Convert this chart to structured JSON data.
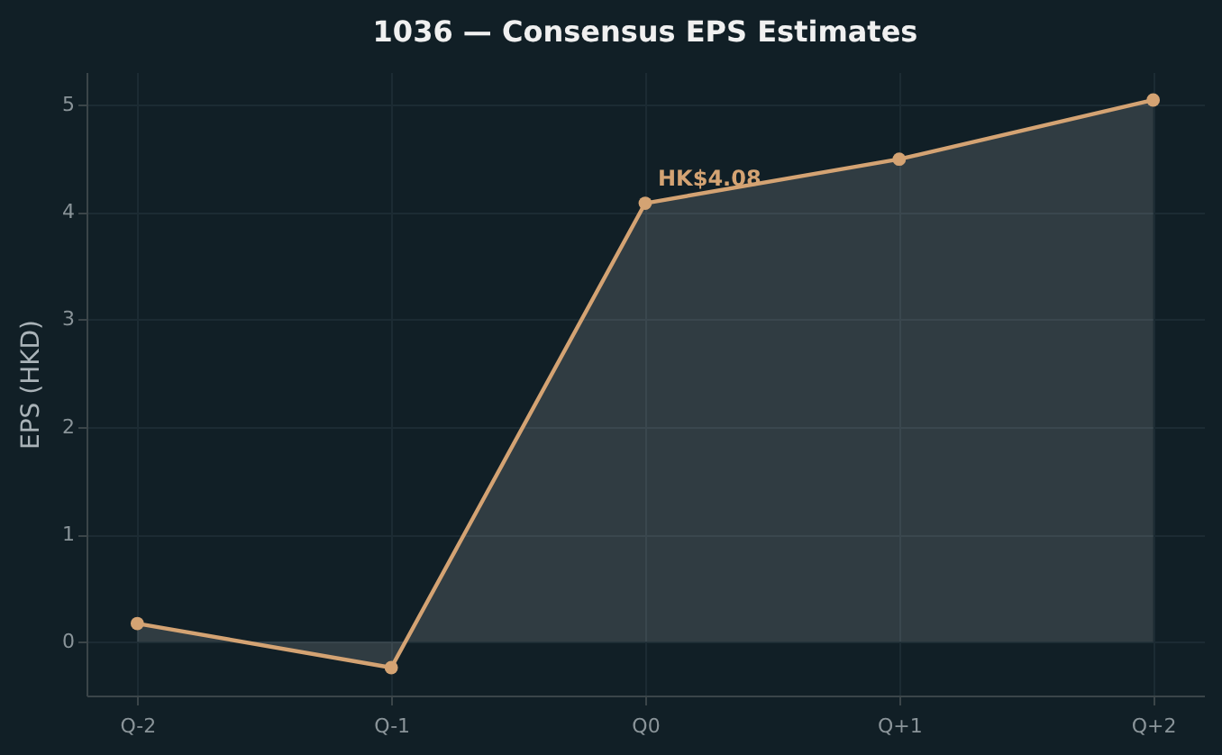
{
  "chart_data": {
    "type": "area",
    "title": "1036 — Consensus EPS Estimates",
    "ylabel": "EPS (HKD)",
    "categories": [
      "Q-2",
      "Q-1",
      "Q0",
      "Q+1",
      "Q+2"
    ],
    "series": [
      {
        "color": "#d4a373",
        "values": [
          0.17,
          -0.24,
          4.08,
          4.49,
          5.04
        ]
      }
    ],
    "ylim": [
      -0.5,
      5.3
    ],
    "yticks": [
      0,
      1,
      2,
      3,
      4,
      5
    ],
    "grid": true,
    "marker": "circle",
    "line_style": "solid",
    "annotations": [
      {
        "text": "HK$4.08",
        "x": "Q0",
        "y": 4.08
      }
    ]
  }
}
